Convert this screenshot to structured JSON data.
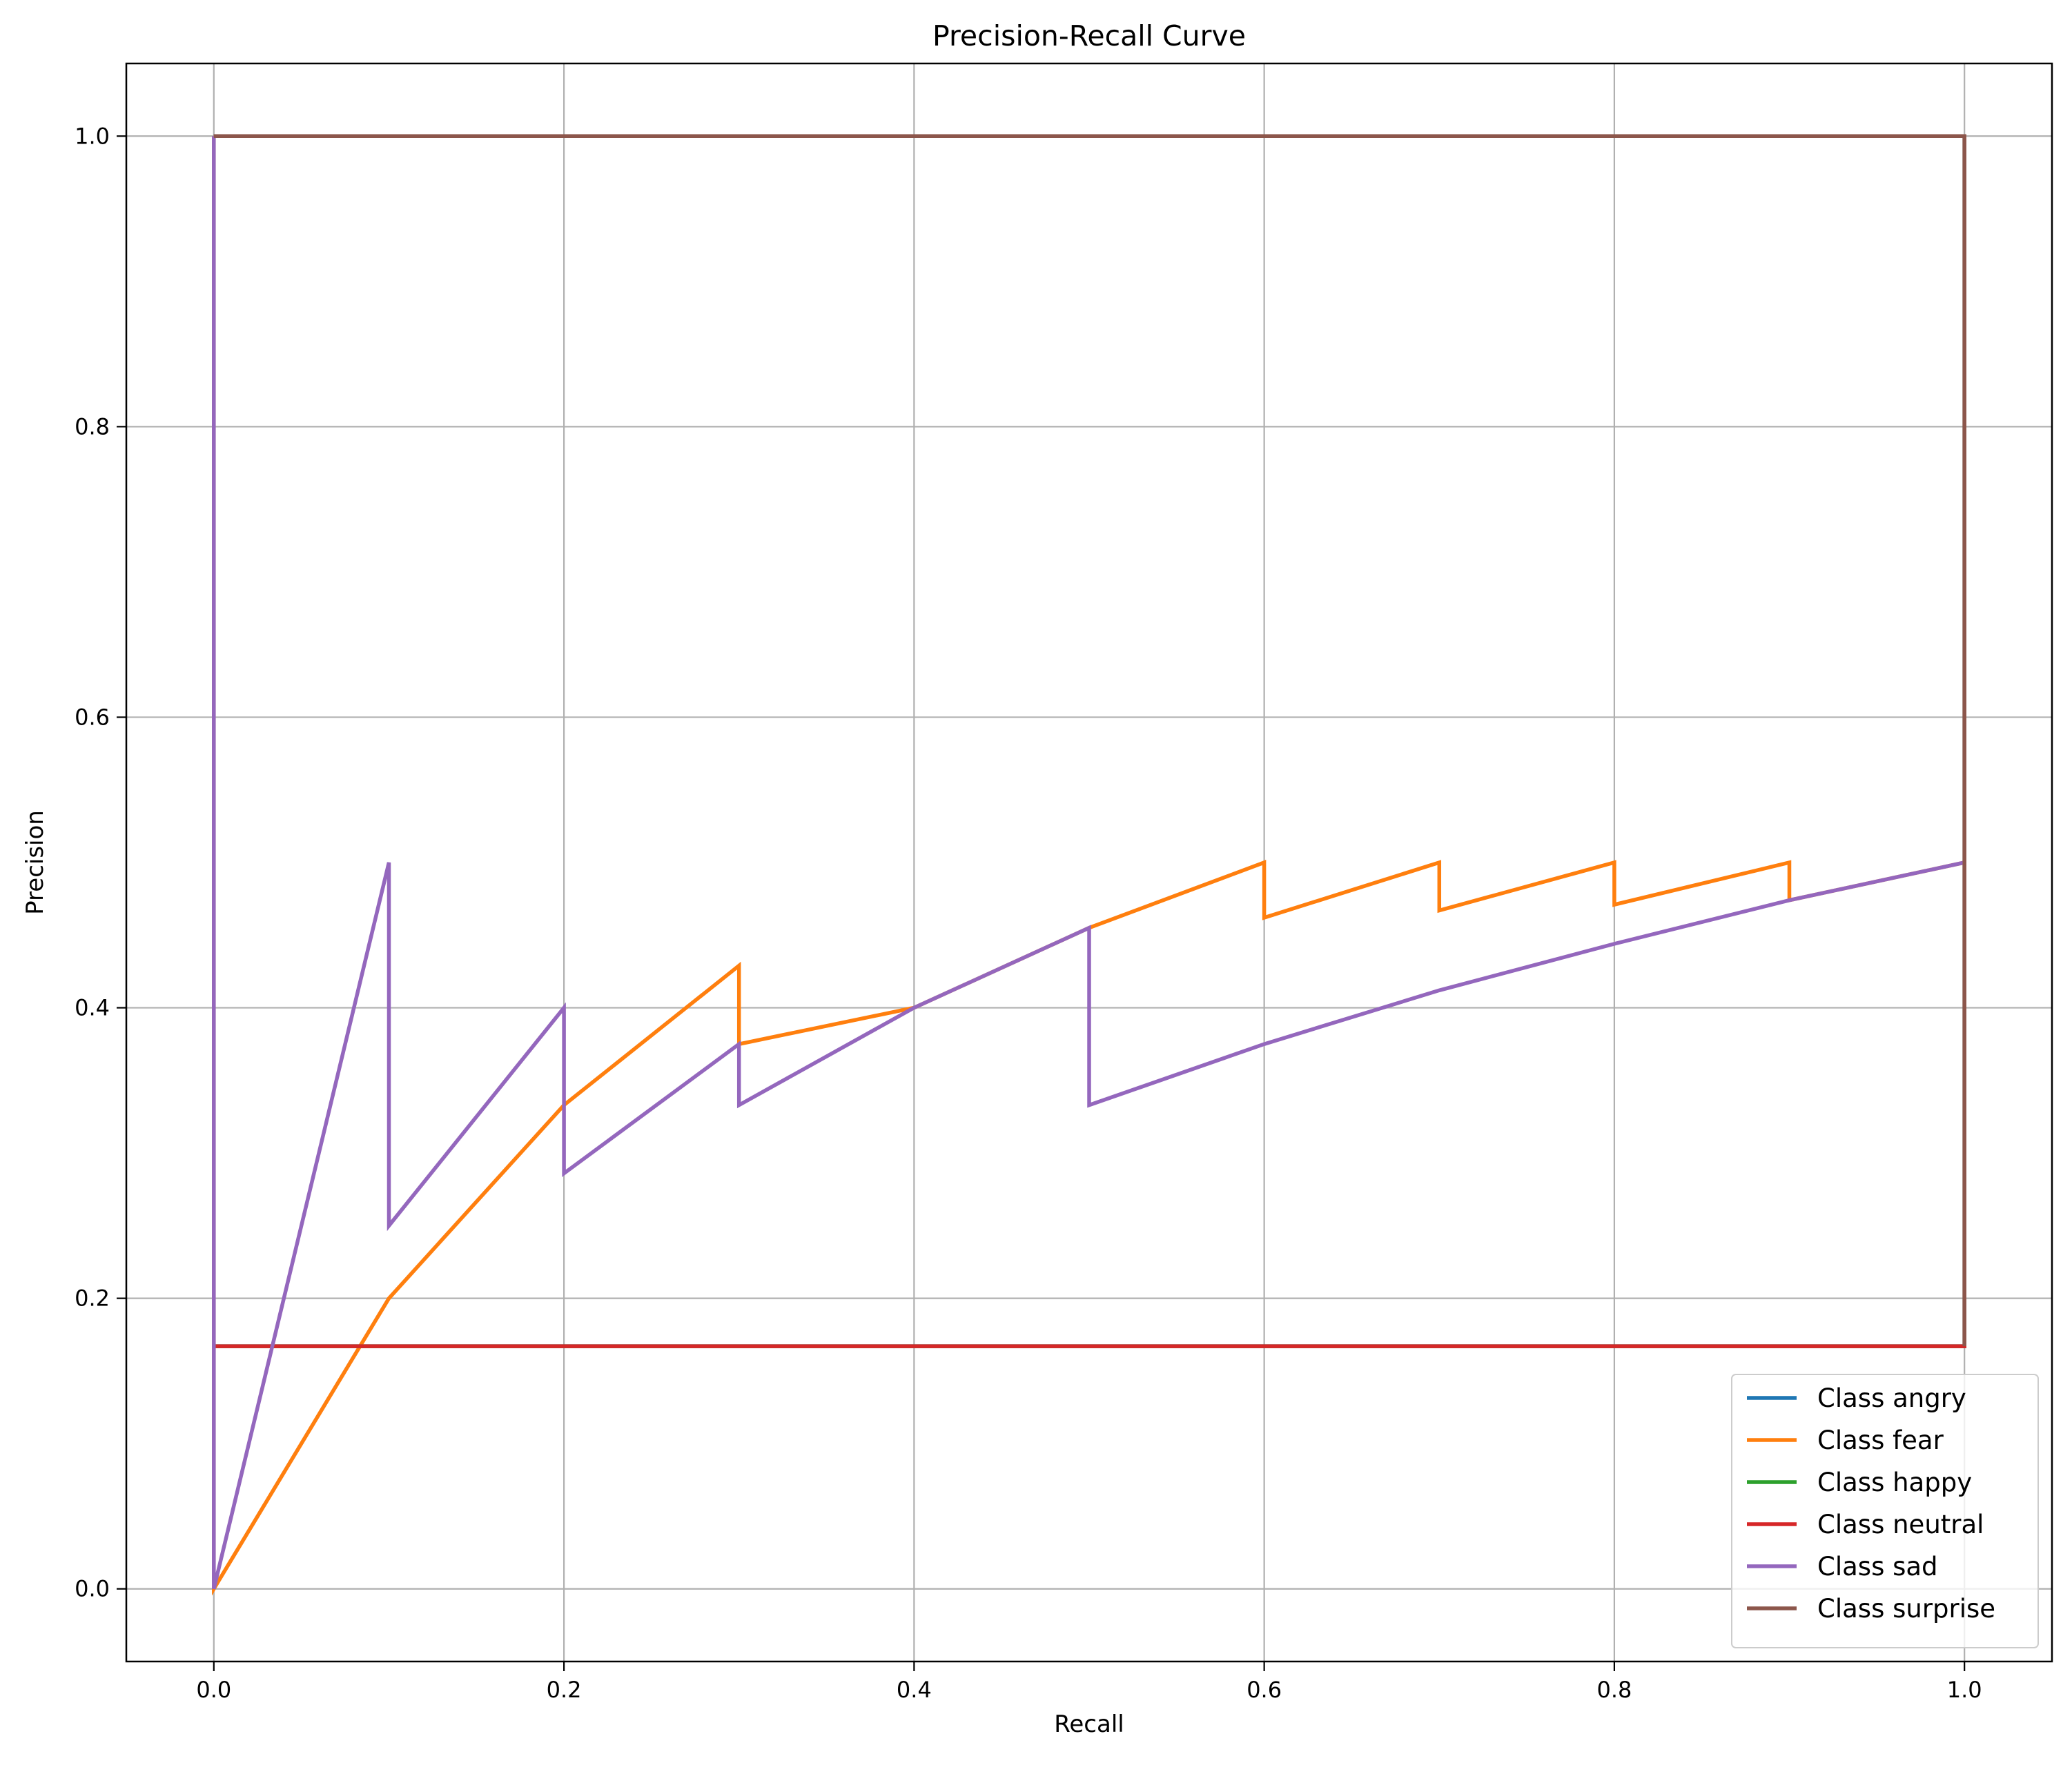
{
  "chart_data": {
    "type": "line",
    "title": "Precision-Recall Curve",
    "xlabel": "Recall",
    "ylabel": "Precision",
    "xlim": [
      -0.05,
      1.05
    ],
    "ylim": [
      -0.05,
      1.05
    ],
    "xticks": [
      "0.0",
      "0.2",
      "0.4",
      "0.6",
      "0.8",
      "1.0"
    ],
    "xtick_values": [
      0.0,
      0.2,
      0.4,
      0.6,
      0.8,
      1.0
    ],
    "yticks": [
      "0.0",
      "0.2",
      "0.4",
      "0.6",
      "0.8",
      "1.0"
    ],
    "ytick_values": [
      0.0,
      0.2,
      0.4,
      0.6,
      0.8,
      1.0
    ],
    "grid": true,
    "legend_position": "lower-right",
    "series": [
      {
        "name": "Class angry",
        "color": "#1f77b4",
        "points": [
          [
            0,
            0.167
          ],
          [
            1.0,
            0.167
          ],
          [
            1.0,
            1.0
          ],
          [
            0,
            1.0
          ]
        ]
      },
      {
        "name": "Class fear",
        "color": "#ff7f0e",
        "points": [
          [
            0,
            1.0
          ],
          [
            0,
            0
          ],
          [
            0.1,
            0.2
          ],
          [
            0.2,
            0.333
          ],
          [
            0.3,
            0.429
          ],
          [
            0.3,
            0.375
          ],
          [
            0.4,
            0.4
          ],
          [
            0.5,
            0.455
          ],
          [
            0.6,
            0.5
          ],
          [
            0.6,
            0.462
          ],
          [
            0.7,
            0.5
          ],
          [
            0.7,
            0.467
          ],
          [
            0.8,
            0.5
          ],
          [
            0.8,
            0.471
          ],
          [
            0.9,
            0.5
          ],
          [
            0.9,
            0.474
          ],
          [
            1.0,
            0.5
          ]
        ]
      },
      {
        "name": "Class happy",
        "color": "#2ca02c",
        "points": [
          [
            0,
            0.167
          ],
          [
            1.0,
            0.167
          ],
          [
            1.0,
            1.0
          ],
          [
            0,
            1.0
          ]
        ]
      },
      {
        "name": "Class neutral",
        "color": "#d62728",
        "points": [
          [
            0,
            0.167
          ],
          [
            1.0,
            0.167
          ],
          [
            1.0,
            1.0
          ],
          [
            0,
            1.0
          ]
        ]
      },
      {
        "name": "Class sad",
        "color": "#9467bd",
        "points": [
          [
            0,
            1.0
          ],
          [
            0,
            0
          ],
          [
            0.1,
            0.5
          ],
          [
            0.1,
            0.25
          ],
          [
            0.2,
            0.4
          ],
          [
            0.2,
            0.286
          ],
          [
            0.3,
            0.375
          ],
          [
            0.3,
            0.333
          ],
          [
            0.4,
            0.4
          ],
          [
            0.5,
            0.455
          ],
          [
            0.5,
            0.333
          ],
          [
            0.6,
            0.375
          ],
          [
            0.7,
            0.412
          ],
          [
            0.8,
            0.444
          ],
          [
            0.9,
            0.474
          ],
          [
            1.0,
            0.5
          ]
        ]
      },
      {
        "name": "Class surprise",
        "color": "#8c564b",
        "points": [
          [
            1.0,
            0.167
          ],
          [
            1.0,
            1.0
          ],
          [
            0,
            1.0
          ]
        ]
      }
    ]
  }
}
